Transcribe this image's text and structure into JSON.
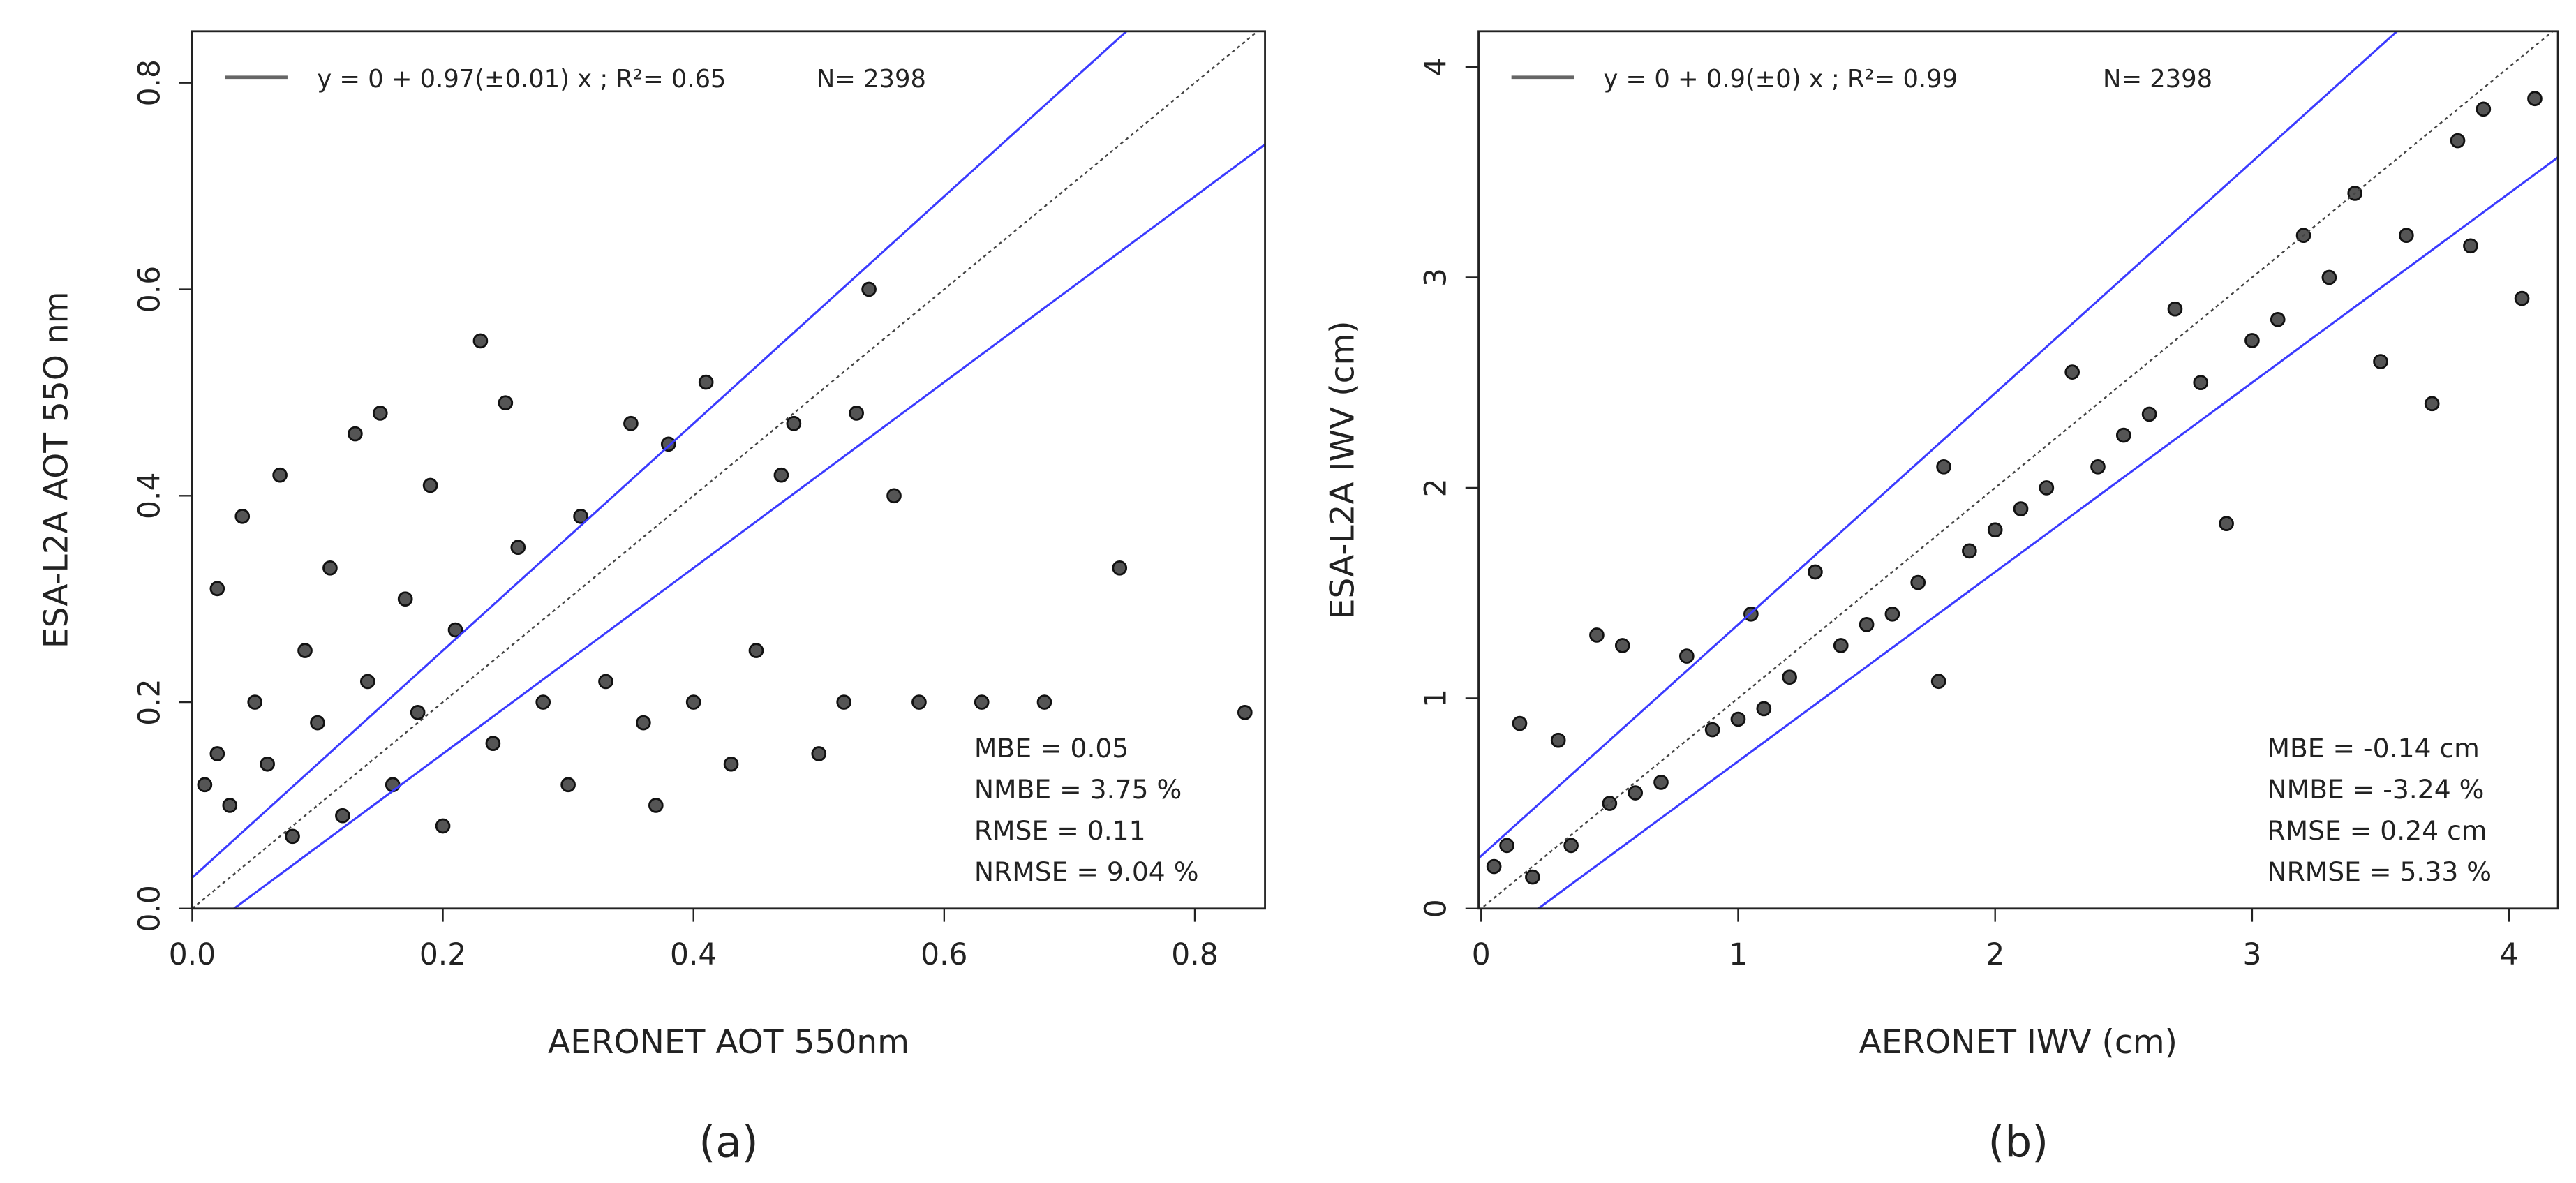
{
  "chart_data": [
    {
      "type": "scatter",
      "caption": "(a)",
      "x_label": "AERONET AOT 550nm",
      "y_label": "ESA-L2A AOT 55O nm",
      "legend_label": "y = 0 + 0.97(±0.01) x ; R²= 0.65",
      "n_label": "N= 2398",
      "legend_color": "#666666",
      "stats": [
        "MBE = 0.05",
        "NMBE = 3.75 %",
        "RMSE = 0.11",
        "NRMSE = 9.04 %"
      ],
      "xlim": [
        0,
        0.856
      ],
      "ylim": [
        0,
        0.85
      ],
      "xticks": [
        {
          "value": 0,
          "label": "0.0"
        },
        0.2,
        0.4,
        0.6,
        0.8
      ],
      "yticks": [
        {
          "value": 0,
          "label": "0.0"
        },
        0.2,
        0.4,
        0.6,
        0.8
      ],
      "color": "#555555",
      "x": [
        0.01,
        0.02,
        0.03,
        0.02,
        0.04,
        0.05,
        0.06,
        0.07,
        0.08,
        0.09,
        0.1,
        0.11,
        0.12,
        0.13,
        0.14,
        0.15,
        0.16,
        0.17,
        0.18,
        0.19,
        0.2,
        0.21,
        0.23,
        0.24,
        0.25,
        0.26,
        0.28,
        0.3,
        0.31,
        0.33,
        0.35,
        0.36,
        0.37,
        0.38,
        0.4,
        0.41,
        0.43,
        0.45,
        0.47,
        0.48,
        0.5,
        0.52,
        0.53,
        0.54,
        0.56,
        0.58,
        0.63,
        0.68,
        0.74,
        0.84
      ],
      "values": [
        0.12,
        0.15,
        0.1,
        0.31,
        0.38,
        0.2,
        0.14,
        0.42,
        0.07,
        0.25,
        0.18,
        0.33,
        0.09,
        0.46,
        0.22,
        0.48,
        0.12,
        0.3,
        0.19,
        0.41,
        0.08,
        0.27,
        0.55,
        0.16,
        0.49,
        0.35,
        0.2,
        0.12,
        0.38,
        0.22,
        0.47,
        0.18,
        0.1,
        0.45,
        0.2,
        0.51,
        0.14,
        0.25,
        0.42,
        0.47,
        0.15,
        0.2,
        0.48,
        0.6,
        0.4,
        0.2,
        0.2,
        0.2,
        0.33,
        0.19
      ],
      "lines": [
        {
          "slope": 1,
          "intercept": 0,
          "color": "#444444",
          "dashed": true
        },
        {
          "slope": 1.1,
          "intercept": 0.03,
          "color": "#3b3bff"
        },
        {
          "slope": 0.9,
          "intercept": -0.03,
          "color": "#3b3bff"
        }
      ]
    },
    {
      "type": "scatter",
      "caption": "(b)",
      "x_label": "AERONET IWV (cm)",
      "y_label": "ESA-L2A IWV (cm)",
      "legend_label": "y = 0 + 0.9(±0) x ; R²= 0.99",
      "n_label": "N= 2398",
      "legend_color": "#666666",
      "stats": [
        "MBE = -0.14 cm",
        "NMBE = -3.24 %",
        "RMSE = 0.24 cm",
        "NRMSE = 5.33 %"
      ],
      "xlim": [
        -0.01,
        4.19
      ],
      "ylim": [
        0,
        4.17
      ],
      "xticks": [
        0,
        1,
        2,
        3,
        4
      ],
      "yticks": [
        0,
        1,
        2,
        3,
        4
      ],
      "color": "#555555",
      "x": [
        0.05,
        0.1,
        0.15,
        0.2,
        0.3,
        0.35,
        0.45,
        0.5,
        0.55,
        0.6,
        0.7,
        0.8,
        0.9,
        1.0,
        1.05,
        1.1,
        1.2,
        1.3,
        1.4,
        1.5,
        1.6,
        1.7,
        1.78,
        1.8,
        1.9,
        2.0,
        2.1,
        2.2,
        2.3,
        2.4,
        2.5,
        2.6,
        2.7,
        2.8,
        2.9,
        3.0,
        3.1,
        3.2,
        3.3,
        3.4,
        3.5,
        3.6,
        3.7,
        3.8,
        3.85,
        3.9,
        4.05,
        4.1
      ],
      "values": [
        0.2,
        0.3,
        0.88,
        0.15,
        0.8,
        0.3,
        1.3,
        0.5,
        1.25,
        0.55,
        0.6,
        1.2,
        0.85,
        0.9,
        1.4,
        0.95,
        1.1,
        1.6,
        1.25,
        1.35,
        1.4,
        1.55,
        1.08,
        2.1,
        1.7,
        1.8,
        1.9,
        2.0,
        2.55,
        2.1,
        2.25,
        2.35,
        2.85,
        2.5,
        1.83,
        2.7,
        2.8,
        3.2,
        3.0,
        3.4,
        2.6,
        3.2,
        2.4,
        3.65,
        3.15,
        3.8,
        2.9,
        3.85
      ],
      "lines": [
        {
          "slope": 1,
          "intercept": 0,
          "color": "#444444",
          "dashed": true
        },
        {
          "slope": 1.1,
          "intercept": 0.25,
          "color": "#3b3bff"
        },
        {
          "slope": 0.9,
          "intercept": -0.2,
          "color": "#3b3bff"
        }
      ]
    }
  ]
}
